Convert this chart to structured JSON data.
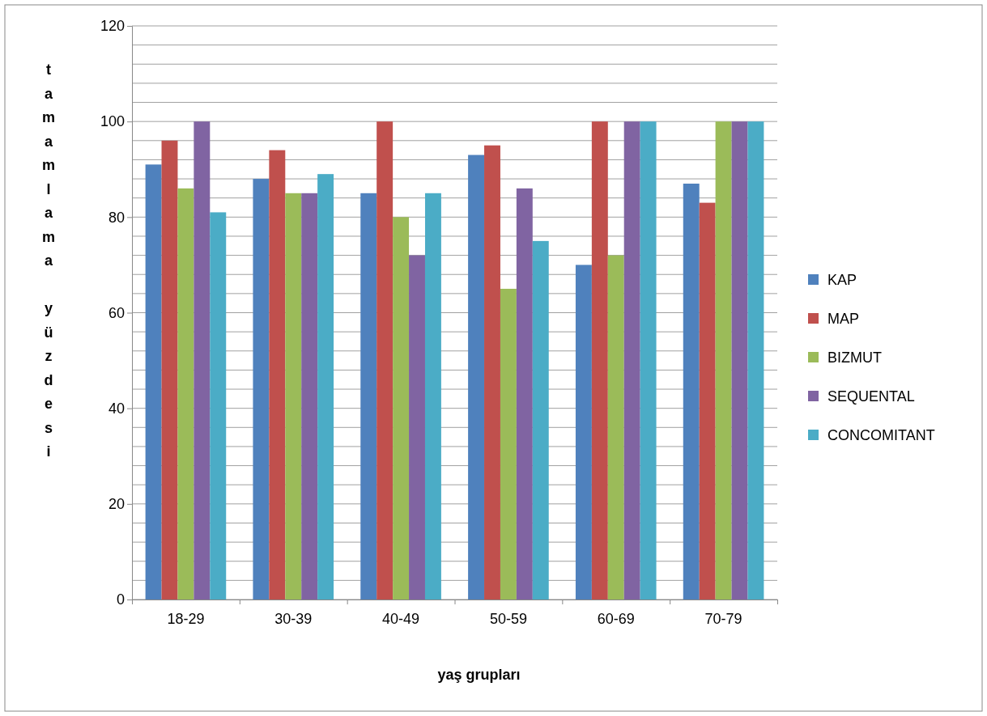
{
  "chart_data": {
    "type": "bar",
    "xlabel": "yaş grupları",
    "ylabel": "tamamlama yüzdesi",
    "categories": [
      "18-29",
      "30-39",
      "40-49",
      "50-59",
      "60-69",
      "70-79"
    ],
    "series": [
      {
        "name": "KAP",
        "color": "#4f81bd",
        "values": [
          91,
          88,
          85,
          93,
          70,
          87
        ]
      },
      {
        "name": "MAP",
        "color": "#c0504d",
        "values": [
          96,
          94,
          100,
          95,
          100,
          83
        ]
      },
      {
        "name": "BIZMUT",
        "color": "#9bbb59",
        "values": [
          86,
          85,
          80,
          65,
          72,
          100
        ]
      },
      {
        "name": "SEQUENTAL",
        "color": "#8064a2",
        "values": [
          100,
          85,
          72,
          86,
          100,
          100
        ]
      },
      {
        "name": "CONCOMITANT",
        "color": "#4bacc6",
        "values": [
          81,
          89,
          85,
          75,
          100,
          100
        ]
      }
    ],
    "ylim": [
      0,
      120
    ],
    "yticks": [
      0,
      {
        "value": 4,
        "label": null
      },
      {
        "value": 8,
        "label": null
      },
      {
        "value": 12,
        "label": null
      },
      {
        "value": 16,
        "label": null
      },
      20,
      {
        "value": 24,
        "label": null
      },
      {
        "value": 28,
        "label": null
      },
      {
        "value": 32,
        "label": null
      },
      {
        "value": 36,
        "label": null
      },
      40,
      {
        "value": 44,
        "label": null
      },
      {
        "value": 48,
        "label": null
      },
      {
        "value": 52,
        "label": null
      },
      {
        "value": 56,
        "label": null
      },
      60,
      {
        "value": 64,
        "label": null
      },
      {
        "value": 68,
        "label": null
      },
      {
        "value": 72,
        "label": null
      },
      {
        "value": 76,
        "label": null
      },
      80,
      {
        "value": 84,
        "label": null
      },
      {
        "value": 88,
        "label": null
      },
      {
        "value": 92,
        "label": null
      },
      {
        "value": 96,
        "label": null
      },
      100,
      {
        "value": 104,
        "label": null
      },
      {
        "value": 108,
        "label": null
      },
      {
        "value": 112,
        "label": null
      },
      {
        "value": 116,
        "label": null
      },
      120
    ],
    "grid": "y",
    "legend": "right"
  }
}
